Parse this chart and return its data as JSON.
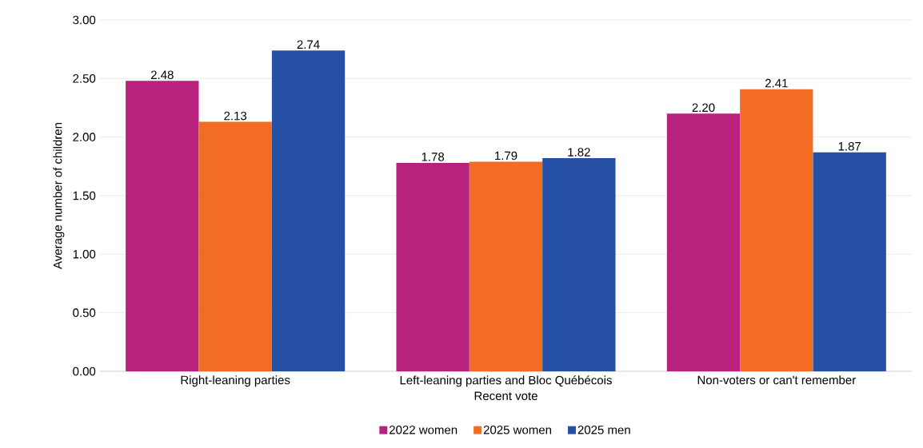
{
  "chart_data": {
    "type": "bar",
    "xlabel": "Recent vote",
    "ylabel": "Average number of children",
    "categories": [
      "Right-leaning parties",
      "Left-leaning parties and Bloc Québécois",
      "Non-voters or can't remember"
    ],
    "series": [
      {
        "name": "2022 women",
        "color": "#b8217e",
        "values": [
          2.48,
          1.78,
          2.2
        ],
        "value_labels": [
          "2.48",
          "1.78",
          "2.20"
        ]
      },
      {
        "name": "2025 women",
        "color": "#f26c23",
        "values": [
          2.13,
          1.79,
          2.41
        ],
        "value_labels": [
          "2.13",
          "1.79",
          "2.41"
        ]
      },
      {
        "name": "2025 men",
        "color": "#2550a3",
        "values": [
          2.74,
          1.82,
          1.87
        ],
        "value_labels": [
          "2.74",
          "1.82",
          "1.87"
        ]
      }
    ],
    "ylim": [
      0,
      3
    ],
    "yticks": [
      {
        "value": 0,
        "label": "0.00"
      },
      {
        "value": 0.5,
        "label": "0.50"
      },
      {
        "value": 1,
        "label": "1.00"
      },
      {
        "value": 1.5,
        "label": "1.50"
      },
      {
        "value": 2,
        "label": "2.00"
      },
      {
        "value": 2.5,
        "label": "2.50"
      },
      {
        "value": 3,
        "label": "3.00"
      }
    ],
    "grid": "y",
    "legend": "bottom"
  }
}
